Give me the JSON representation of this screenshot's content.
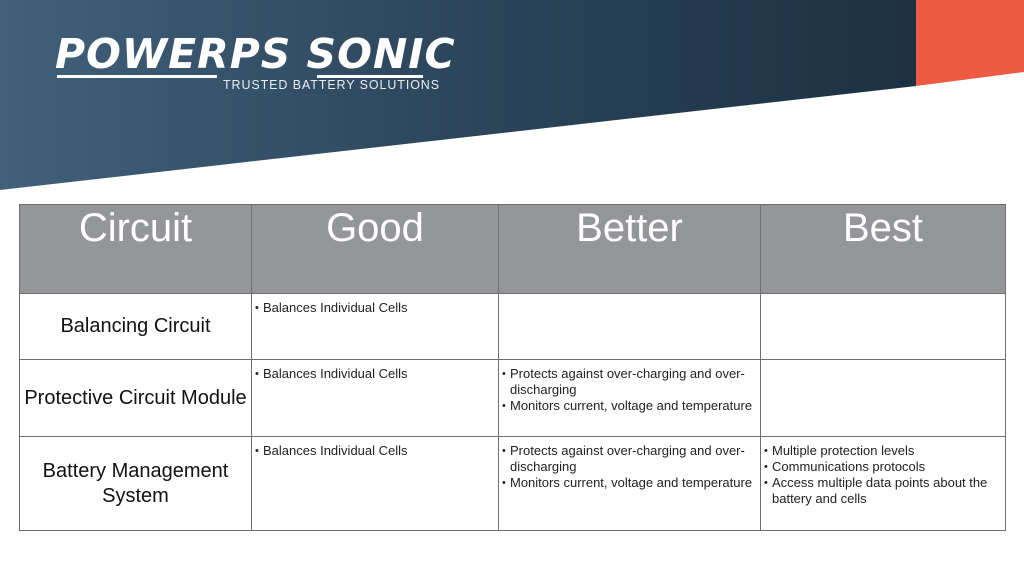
{
  "brand": {
    "wordmark": "POWERPS SONIC",
    "tagline": "TRUSTED BATTERY SOLUTIONS",
    "colors": {
      "banner_dark": "#1f3547",
      "banner_light": "#41607a",
      "accent": "#ee5a43",
      "header_gray": "#94969a"
    }
  },
  "table": {
    "headers": [
      "Circuit",
      "Good",
      "Better",
      "Best"
    ],
    "rows": [
      {
        "label": "Balancing Circuit",
        "good": [
          "Balances Individual Cells"
        ],
        "better": [],
        "best": []
      },
      {
        "label": "Protective Circuit Module",
        "good": [
          "Balances Individual Cells"
        ],
        "better": [
          "Protects against over-charging and over-discharging",
          "Monitors current, voltage and temperature"
        ],
        "best": []
      },
      {
        "label": "Battery Management System",
        "good": [
          "Balances Individual Cells"
        ],
        "better": [
          "Protects against over-charging and over-discharging",
          "Monitors current, voltage and temperature"
        ],
        "best": [
          "Multiple protection levels",
          "Communications protocols",
          "Access multiple data points about the battery and cells"
        ]
      }
    ]
  }
}
